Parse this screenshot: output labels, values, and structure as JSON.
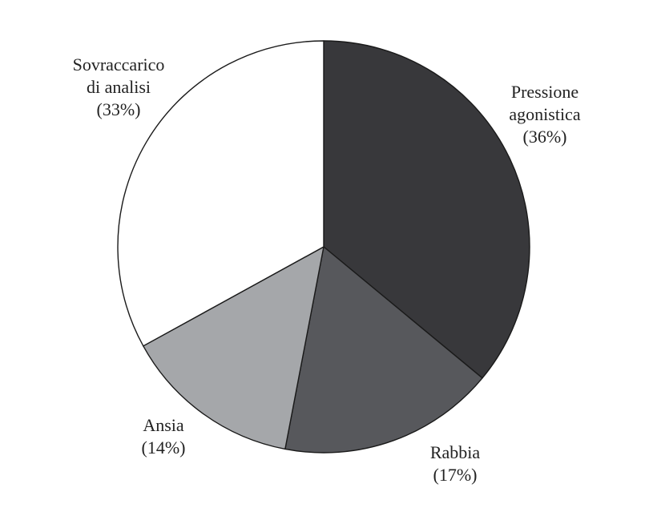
{
  "chart_data": {
    "type": "pie",
    "start": "top",
    "direction": "clockwise",
    "slices": [
      {
        "label": [
          "Pressione",
          "agonistica"
        ],
        "pct_label": "(36%)",
        "value": 36,
        "color": "#38383b"
      },
      {
        "label": [
          "Rabbia"
        ],
        "pct_label": "(17%)",
        "value": 17,
        "color": "#57585c"
      },
      {
        "label": [
          "Ansia"
        ],
        "pct_label": "(14%)",
        "value": 14,
        "color": "#a5a7aa"
      },
      {
        "label": [
          "Sovraccarico",
          "di analisi"
        ],
        "pct_label": "(33%)",
        "value": 33,
        "color": "#ffffff"
      }
    ]
  }
}
